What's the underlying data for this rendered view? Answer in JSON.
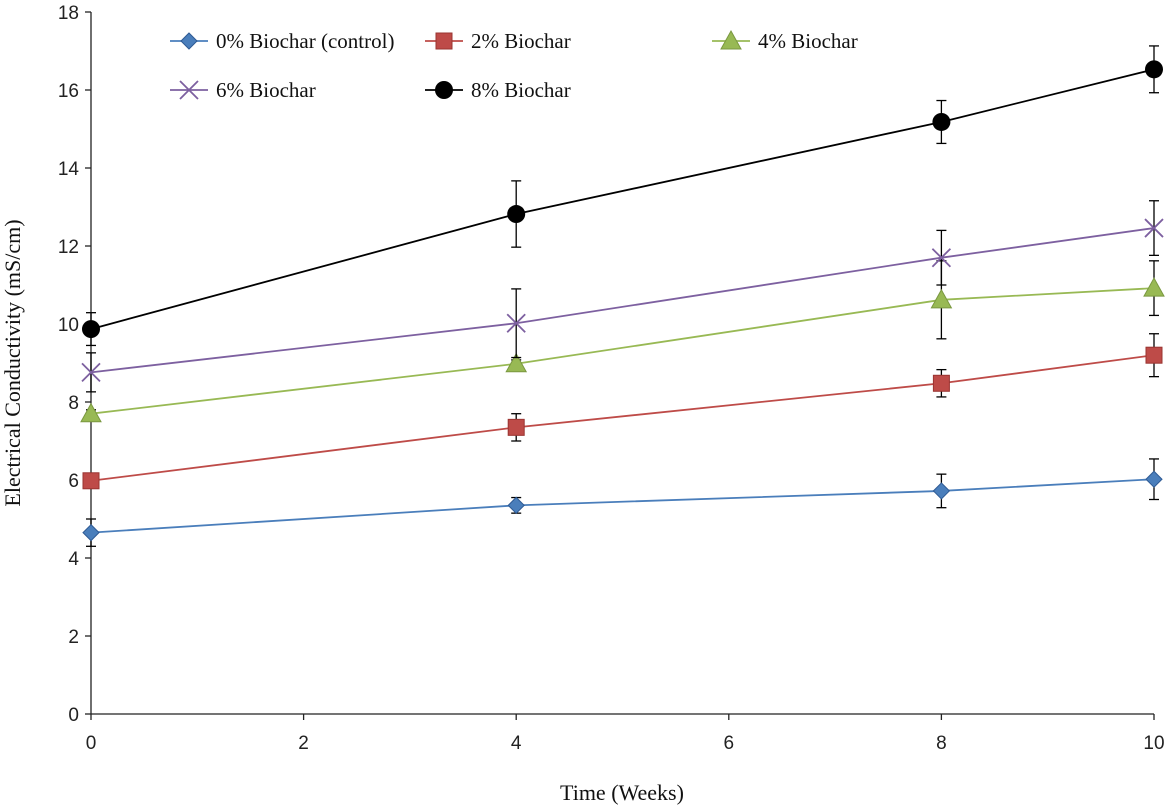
{
  "chart_data": {
    "type": "line",
    "title": "",
    "xlabel": "Time (Weeks)",
    "ylabel": "Electrical Conductivity (mS/cm)",
    "xlim": [
      0,
      10
    ],
    "ylim": [
      0,
      18
    ],
    "xticks": [
      "0",
      "2",
      "4",
      "6",
      "8",
      "10"
    ],
    "yticks": [
      "0",
      "2",
      "4",
      "6",
      "8",
      "10",
      "12",
      "14",
      "16",
      "18"
    ],
    "x": [
      0,
      4,
      8,
      10
    ],
    "series": [
      {
        "name": "0% Biochar (control)",
        "color": "#4A7EBB",
        "marker": "diamond",
        "values": [
          4.65,
          5.35,
          5.72,
          6.02
        ],
        "errors": [
          0.35,
          0.2,
          0.43,
          0.52
        ]
      },
      {
        "name": "2% Biochar",
        "color": "#BE4B48",
        "marker": "square",
        "values": [
          5.98,
          7.35,
          8.48,
          9.2
        ],
        "errors": [
          0.1,
          0.35,
          0.35,
          0.55
        ]
      },
      {
        "name": "4% Biochar",
        "color": "#98B954",
        "marker": "triangle",
        "values": [
          7.7,
          8.98,
          10.62,
          10.92
        ],
        "errors": [
          0.1,
          0.1,
          1.0,
          0.7
        ]
      },
      {
        "name": "6% Biochar",
        "color": "#7D60A0",
        "marker": "x",
        "values": [
          8.76,
          10.02,
          11.7,
          12.46
        ],
        "errors": [
          0.5,
          0.88,
          0.7,
          0.7
        ]
      },
      {
        "name": "8% Biochar",
        "color": "#000000",
        "marker": "circle",
        "values": [
          9.87,
          12.82,
          15.18,
          16.53
        ],
        "errors": [
          0.42,
          0.85,
          0.55,
          0.6
        ]
      }
    ],
    "legend": "top-left, inside plot"
  }
}
